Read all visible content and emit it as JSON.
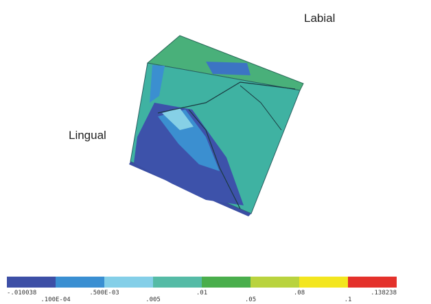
{
  "annotations": {
    "labial": "Labial",
    "lingual": "Lingual"
  },
  "legend": {
    "colors": [
      "#3d4fa6",
      "#3a8fd2",
      "#84cfe8",
      "#55bba6",
      "#4aae4c",
      "#b9d33e",
      "#f3e61f",
      "#e4312b"
    ],
    "labels": [
      "-.010038",
      ".100E-04",
      ".500E-03",
      ".005",
      ".01",
      ".05",
      ".08",
      ".1",
      ".138238"
    ]
  }
}
